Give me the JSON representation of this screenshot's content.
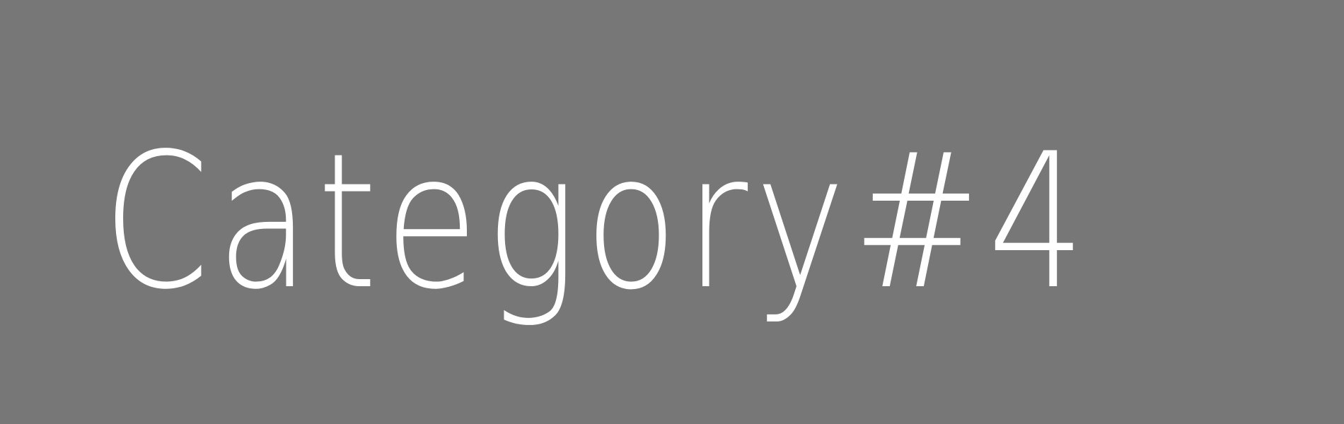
{
  "label": "Category#4",
  "colors": {
    "background": "#777777",
    "text": "#ffffff"
  }
}
